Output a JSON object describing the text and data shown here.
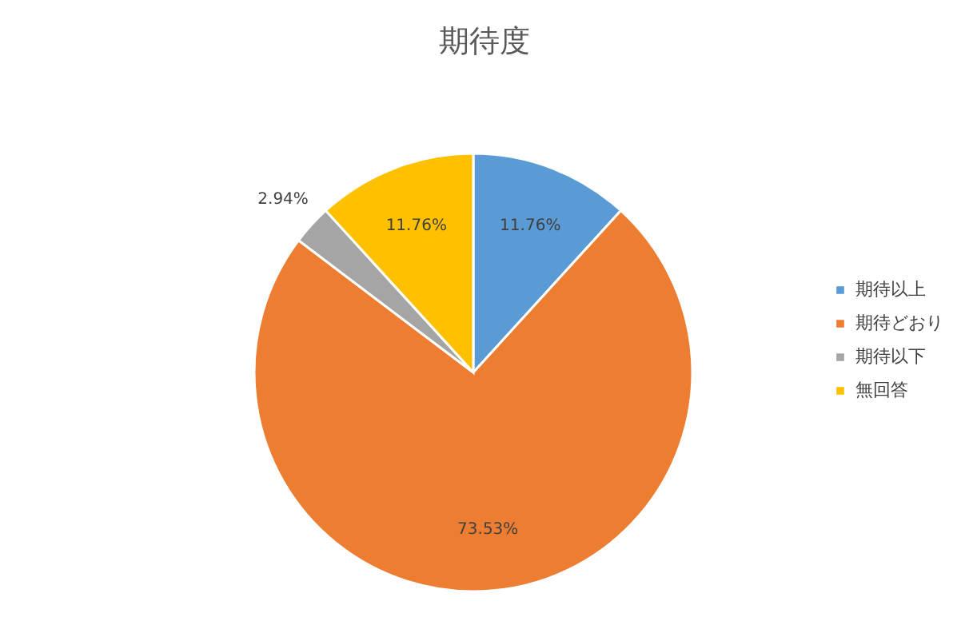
{
  "chart_data": {
    "type": "pie",
    "title": "期待度",
    "categories": [
      "期待以上",
      "期待どおり",
      "期待以下",
      "無回答"
    ],
    "values": [
      11.76,
      73.53,
      2.94,
      11.76
    ],
    "colors": [
      "#5b9bd5",
      "#ed7d31",
      "#a5a5a5",
      "#ffc000"
    ],
    "value_labels": [
      "11.76%",
      "73.53%",
      "2.94%",
      "11.76%"
    ],
    "legend": "right"
  }
}
